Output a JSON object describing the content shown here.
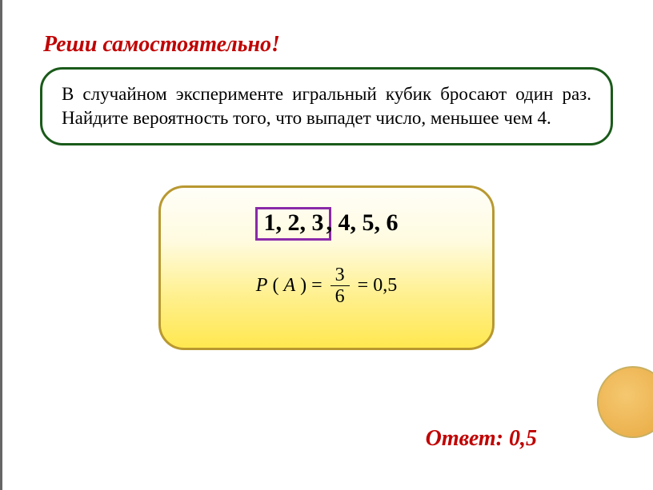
{
  "title": "Реши самостоятельно!",
  "problem": "В случайном эксперименте игральный кубик бросают один раз. Найдите вероятность того, что выпадет число, меньшее чем 4.",
  "solution": {
    "highlighted_numbers": "1, 2, 3",
    "rest_numbers": ", 4, 5, 6",
    "formula": {
      "left": "P",
      "paren_open": "(",
      "variable": "A",
      "paren_close": ")",
      "equals1": "=",
      "numerator": "3",
      "denominator": "6",
      "equals2": "=",
      "result": "0,5"
    }
  },
  "answer": "Ответ: 0,5",
  "colors": {
    "title_color": "#c00000",
    "problem_border": "#1a5a1a",
    "solution_border": "#b89830",
    "highlight_border": "#8a2aa8",
    "answer_color": "#c00000"
  }
}
